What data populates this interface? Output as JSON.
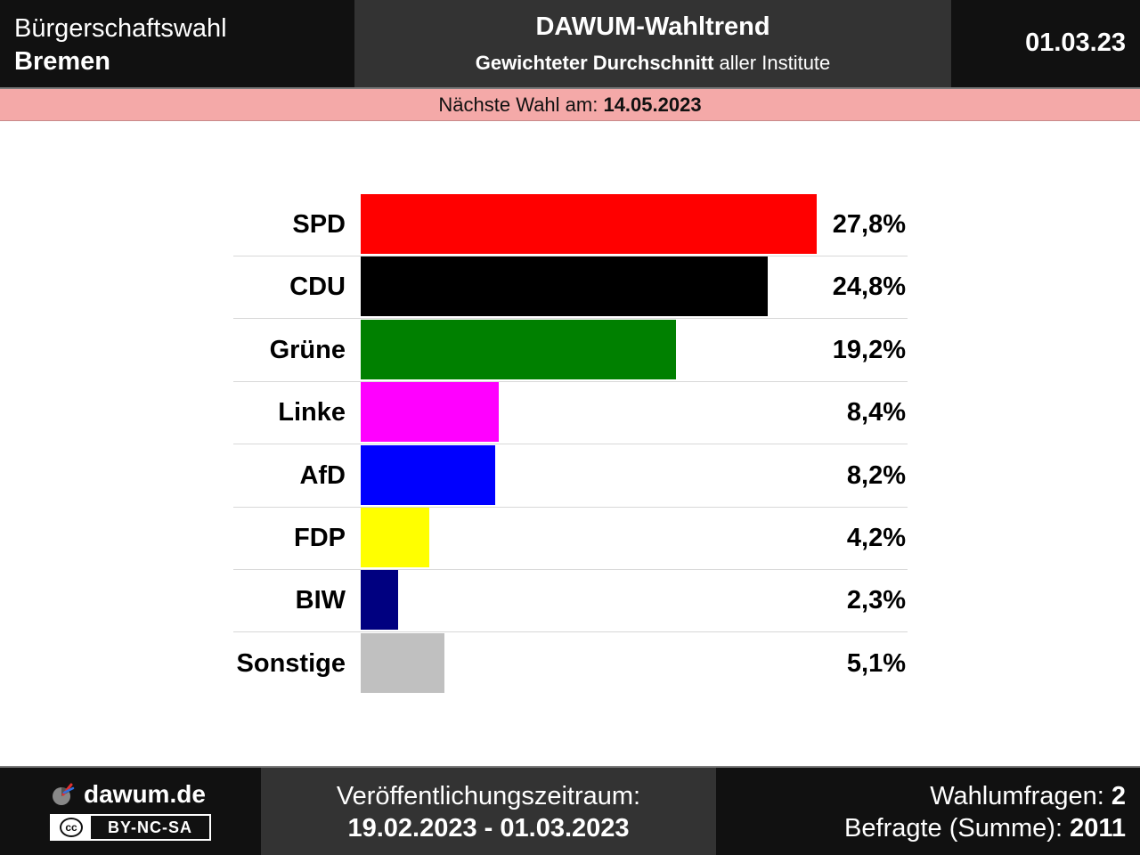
{
  "header": {
    "election_type": "Bürgerschaftswahl",
    "region": "Bremen",
    "title": "DAWUM-Wahltrend",
    "subtitle_bold": "Gewichteter Durchschnitt",
    "subtitle_rest": " aller Institute",
    "date": "01.03.23"
  },
  "next_election": {
    "label": "Nächste Wahl am: ",
    "date": "14.05.2023"
  },
  "chart_data": {
    "type": "bar",
    "orientation": "horizontal",
    "categories": [
      "SPD",
      "CDU",
      "Grüne",
      "Linke",
      "AfD",
      "FDP",
      "BIW",
      "Sonstige"
    ],
    "values": [
      27.8,
      24.8,
      19.2,
      8.4,
      8.2,
      4.2,
      2.3,
      5.1
    ],
    "value_labels": [
      "27,8%",
      "24,8%",
      "19,2%",
      "8,4%",
      "8,2%",
      "4,2%",
      "2,3%",
      "5,1%"
    ],
    "colors": [
      "#ff0000",
      "#000000",
      "#008000",
      "#ff00ff",
      "#0000ff",
      "#ffff00",
      "#000080",
      "#c0c0c0"
    ],
    "unit": "%",
    "xlim": [
      0,
      27.8
    ]
  },
  "footer": {
    "brand": "dawum.de",
    "license": "BY-NC-SA",
    "license_badge": "cc",
    "period_label": "Veröffentlichungszeitraum:",
    "period": "19.02.2023 - 01.03.2023",
    "polls_label": "Wahlumfragen: ",
    "polls_count": "2",
    "respondents_label": "Befragte (Summe): ",
    "respondents_count": "2011"
  }
}
